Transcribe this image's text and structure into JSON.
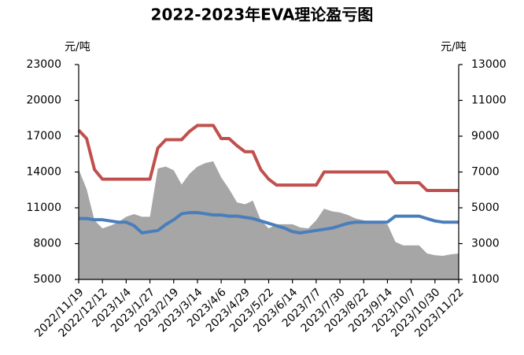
{
  "chart_data": {
    "type": "line",
    "title": "2022-2023年EVA理论盈亏图",
    "ylabel": "元/吨",
    "y2label": "元/吨",
    "categories": [
      "2022/11/19",
      null,
      null,
      "2022/12/12",
      null,
      null,
      "2023/1/4",
      null,
      null,
      "2023/1/27",
      null,
      null,
      "2023/2/19",
      null,
      null,
      "2023/3/14",
      null,
      null,
      "2023/4/6",
      null,
      null,
      "2023/4/29",
      null,
      null,
      "2023/5/22",
      null,
      null,
      "2023/6/14",
      null,
      null,
      "2023/7/7",
      null,
      null,
      "2023/7/30",
      null,
      null,
      "2023/8/22",
      null,
      null,
      "2023/9/14",
      null,
      null,
      "2023/10/7",
      null,
      null,
      "2023/10/30",
      null,
      null,
      "2023/11/22"
    ],
    "ylim": [
      5000,
      23000
    ],
    "yticks": [
      5000,
      8000,
      11000,
      14000,
      17000,
      20000,
      23000
    ],
    "y2lim": [
      1000,
      13000
    ],
    "y2ticks": [
      1000,
      3000,
      5000,
      7000,
      9000,
      11000,
      13000
    ],
    "grid": false,
    "series": [
      {
        "color": "#a6a6a6",
        "style": "area",
        "axis": "y2",
        "values": [
          7150,
          6050,
          4300,
          3850,
          4000,
          4200,
          4500,
          4650,
          4500,
          4500,
          7200,
          7300,
          7100,
          6300,
          6900,
          7300,
          7500,
          7600,
          6700,
          6050,
          5300,
          5200,
          5400,
          4300,
          3850,
          4080,
          4080,
          4080,
          3900,
          3850,
          4300,
          4950,
          4800,
          4740,
          4600,
          4400,
          4300,
          4200,
          4150,
          4080,
          3100,
          2900,
          2900,
          2900,
          2450,
          2350,
          2320,
          2400,
          2450
        ]
      },
      {
        "color": "#c0504d",
        "style": "line",
        "axis": "y",
        "values": [
          17500,
          16800,
          14200,
          13400,
          13400,
          13400,
          13400,
          13400,
          13400,
          13400,
          16000,
          16700,
          16700,
          16700,
          17400,
          17900,
          17900,
          17900,
          16800,
          16800,
          16200,
          15700,
          15700,
          14200,
          13400,
          12900,
          12900,
          12900,
          12900,
          12900,
          12900,
          14000,
          14000,
          14000,
          14000,
          14000,
          14000,
          14000,
          14000,
          14000,
          13100,
          13100,
          13100,
          13100,
          12450,
          12450,
          12450,
          12450,
          12450
        ]
      },
      {
        "color": "#4a7ebb",
        "style": "line",
        "axis": "y",
        "values": [
          10100,
          10100,
          10000,
          10000,
          9900,
          9800,
          9800,
          9500,
          8900,
          9000,
          9100,
          9600,
          10000,
          10500,
          10600,
          10600,
          10500,
          10400,
          10400,
          10300,
          10300,
          10200,
          10100,
          9900,
          9700,
          9500,
          9300,
          9000,
          8900,
          9000,
          9100,
          9200,
          9300,
          9500,
          9700,
          9800,
          9800,
          9800,
          9800,
          9800,
          10300,
          10300,
          10300,
          10300,
          10100,
          9900,
          9800,
          9800,
          9800
        ]
      }
    ]
  }
}
